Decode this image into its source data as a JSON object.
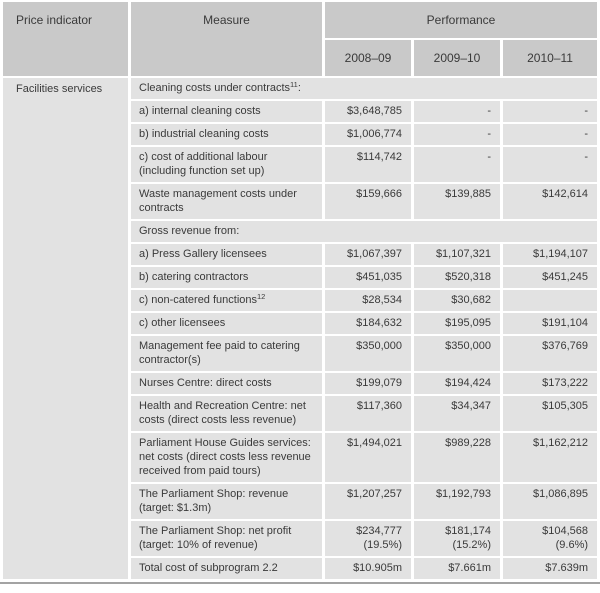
{
  "colors": {
    "header_bg": "#c9c9c9",
    "row_bg": "#e2e2e2",
    "text": "#3a3a3a",
    "bottom_border": "#a3a3a3",
    "page_bg": "#ffffff"
  },
  "table": {
    "header": {
      "price_indicator": "Price indicator",
      "measure": "Measure",
      "performance": "Performance",
      "years": [
        "2008–09",
        "2009–10",
        "2010–11"
      ]
    },
    "price_indicator_cell": "Facilities services",
    "rows": [
      {
        "type": "span",
        "measure": "Cleaning costs under contracts",
        "sup": "11",
        "after": ":"
      },
      {
        "type": "data",
        "measure": "a) internal cleaning costs",
        "values": [
          "$3,648,785",
          "-",
          "-"
        ]
      },
      {
        "type": "data",
        "measure": "b) industrial cleaning costs",
        "values": [
          "$1,006,774",
          "-",
          "-"
        ]
      },
      {
        "type": "data",
        "measure": "c) cost of additional labour (including function set up)",
        "values": [
          "$114,742",
          "-",
          "-"
        ]
      },
      {
        "type": "data",
        "measure": "Waste management costs under contracts",
        "values": [
          "$159,666",
          "$139,885",
          "$142,614"
        ]
      },
      {
        "type": "span",
        "measure": "Gross revenue from:"
      },
      {
        "type": "data",
        "measure": "a) Press Gallery licensees",
        "values": [
          "$1,067,397",
          "$1,107,321",
          "$1,194,107"
        ]
      },
      {
        "type": "data",
        "measure": "b) catering contractors",
        "values": [
          "$451,035",
          "$520,318",
          "$451,245"
        ]
      },
      {
        "type": "data",
        "measure": "c) non-catered functions",
        "sup": "12",
        "after": "",
        "values": [
          "$28,534",
          "$30,682",
          ""
        ]
      },
      {
        "type": "data",
        "measure": "c) other licensees",
        "values": [
          "$184,632",
          "$195,095",
          "$191,104"
        ]
      },
      {
        "type": "data",
        "measure": "Management fee paid to catering contractor(s)",
        "values": [
          "$350,000",
          "$350,000",
          "$376,769"
        ]
      },
      {
        "type": "data",
        "measure": "Nurses Centre: direct costs",
        "values": [
          "$199,079",
          "$194,424",
          "$173,222"
        ]
      },
      {
        "type": "data",
        "measure": "Health and Recreation Centre: net costs (direct costs less revenue)",
        "values": [
          "$117,360",
          "$34,347",
          "$105,305"
        ]
      },
      {
        "type": "data",
        "measure": "Parliament House Guides services: net costs (direct costs less revenue received from paid tours)",
        "values": [
          "$1,494,021",
          "$989,228",
          "$1,162,212"
        ]
      },
      {
        "type": "data",
        "measure": "The Parliament Shop: revenue (target: $1.3m)",
        "values": [
          "$1,207,257",
          "$1,192,793",
          "$1,086,895"
        ]
      },
      {
        "type": "data",
        "measure": "The Parliament Shop: net profit (target: 10% of revenue)",
        "values": [
          "$234,777\n(19.5%)",
          "$181,174\n(15.2%)",
          "$104,568\n(9.6%)"
        ]
      },
      {
        "type": "data",
        "measure": "Total cost of subprogram 2.2",
        "values": [
          "$10.905m",
          "$7.661m",
          "$7.639m"
        ]
      }
    ]
  }
}
